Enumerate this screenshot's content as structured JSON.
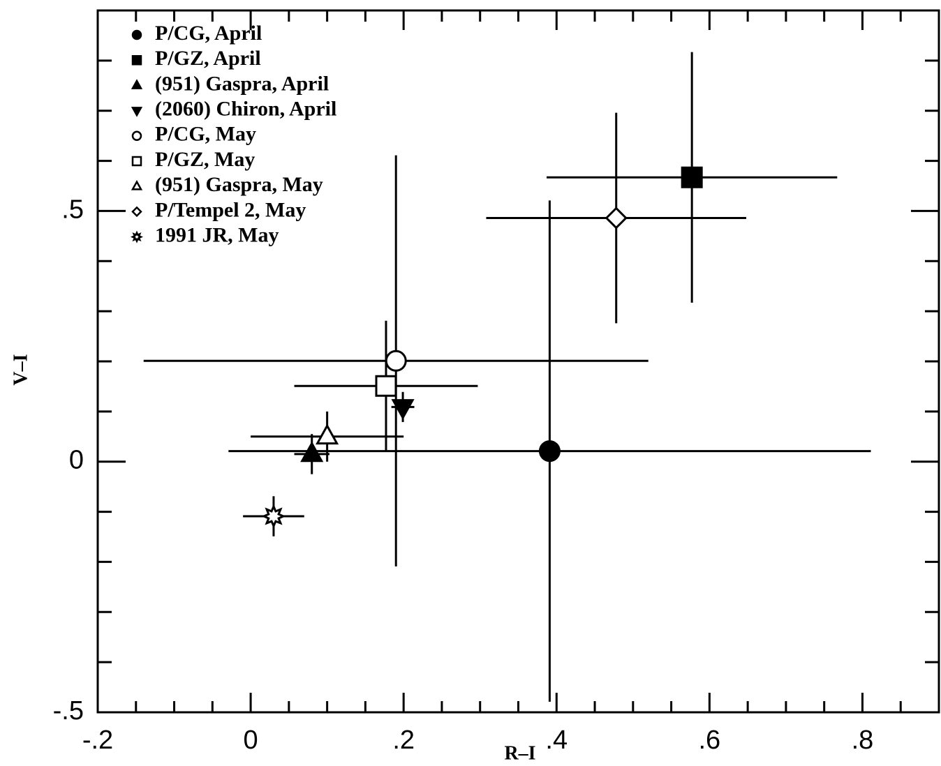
{
  "chart_data": {
    "type": "scatter",
    "x_label": "R–I",
    "y_label": "V–I",
    "xlim": [
      -0.2,
      0.9
    ],
    "ylim": [
      -0.5,
      0.9
    ],
    "xticks": [
      {
        "value": -0.2,
        "label": "-.2"
      },
      0,
      {
        "value": 0.2,
        "label": ".2"
      },
      {
        "value": 0.4,
        "label": ".4"
      },
      {
        "value": 0.6,
        "label": ".6"
      },
      {
        "value": 0.8,
        "label": ".8"
      }
    ],
    "xminorticks": [
      -0.15,
      -0.1,
      -0.05,
      0.05,
      0.1,
      0.15,
      0.25,
      0.3,
      0.35,
      0.45,
      0.5,
      0.55,
      0.65,
      0.7,
      0.75,
      0.85
    ],
    "yticks": [
      {
        "value": -0.5,
        "label": "-.5"
      },
      0,
      {
        "value": 0.5,
        "label": ".5"
      }
    ],
    "yminorticks": [
      -0.4,
      -0.3,
      -0.2,
      -0.1,
      0.1,
      0.2,
      0.3,
      0.4,
      0.6,
      0.7,
      0.8
    ],
    "color": "#000000",
    "series": [
      {
        "name": "P/CG, April",
        "marker": "circle",
        "filled": true,
        "x": [
          0.391
        ],
        "values": [
          0.021
        ],
        "xerr": [
          0.42
        ],
        "yerr": [
          0.5
        ]
      },
      {
        "name": "P/GZ, April",
        "marker": "square",
        "filled": true,
        "x": [
          0.577
        ],
        "values": [
          0.567
        ],
        "xerr": [
          0.19
        ],
        "yerr": [
          0.25
        ]
      },
      {
        "name": "(951) Gaspra, April",
        "marker": "triangle",
        "filled": true,
        "x": [
          0.08
        ],
        "values": [
          0.015
        ],
        "xerr": [
          0.023
        ],
        "yerr": [
          0.04
        ]
      },
      {
        "name": "(2060) Chiron, April",
        "marker": "triangle-down",
        "filled": true,
        "x": [
          0.199
        ],
        "values": [
          0.109
        ],
        "xerr": [
          0.015
        ],
        "yerr": [
          0.03
        ]
      },
      {
        "name": "P/CG, May",
        "marker": "circle",
        "filled": false,
        "x": [
          0.19
        ],
        "values": [
          0.201
        ],
        "xerr": [
          0.33
        ],
        "yerr": [
          0.41
        ]
      },
      {
        "name": "P/GZ, May",
        "marker": "square",
        "filled": false,
        "x": [
          0.177
        ],
        "values": [
          0.151
        ],
        "xerr": [
          0.12
        ],
        "yerr": [
          0.13
        ]
      },
      {
        "name": "(951) Gaspra, May",
        "marker": "triangle",
        "filled": false,
        "x": [
          0.1
        ],
        "values": [
          0.05
        ],
        "xerr": [
          0.1
        ],
        "yerr": [
          0.05
        ]
      },
      {
        "name": "P/Tempel 2, May",
        "marker": "diamond",
        "filled": false,
        "x": [
          0.478
        ],
        "values": [
          0.486
        ],
        "xerr": [
          0.17
        ],
        "yerr": [
          0.21
        ]
      },
      {
        "name": "1991 JR, May",
        "marker": "star",
        "filled": false,
        "x": [
          0.03
        ],
        "values": [
          -0.109
        ],
        "xerr": [
          0.04
        ],
        "yerr": [
          0.04
        ]
      }
    ]
  }
}
